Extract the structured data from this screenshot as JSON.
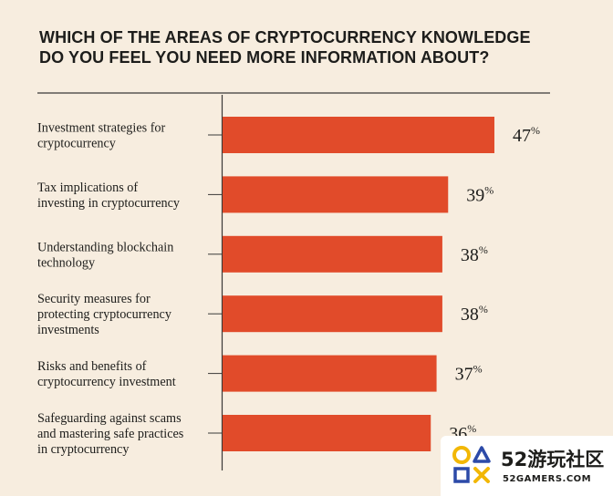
{
  "title_lines": [
    "WHICH OF THE AREAS OF CRYPTOCURRENCY KNOWLEDGE",
    "DO YOU FEEL YOU NEED MORE INFORMATION ABOUT?"
  ],
  "chart_data": {
    "type": "bar",
    "orientation": "horizontal",
    "categories": [
      [
        "Investment strategies for",
        "cryptocurrency"
      ],
      [
        "Tax implications of",
        "investing in cryptocurrency"
      ],
      [
        "Understanding blockchain",
        "technology"
      ],
      [
        "Security measures for",
        "protecting cryptocurrency",
        "investments"
      ],
      [
        "Risks and benefits of",
        "cryptocurrency investment"
      ],
      [
        "Safeguarding against scams",
        "and mastering safe practices",
        "in cryptocurrency"
      ]
    ],
    "values": [
      47,
      39,
      38,
      38,
      37,
      36
    ],
    "value_suffix": "%",
    "bar_color": "#e14b2a",
    "background": "#f7eddf",
    "grid": false,
    "legend": "none"
  },
  "watermark": {
    "text": "52游玩社区",
    "subtext": "52GAMERS.COM",
    "colors": [
      "#f2b705",
      "#2c4aa8",
      "#1d1d1b"
    ]
  }
}
